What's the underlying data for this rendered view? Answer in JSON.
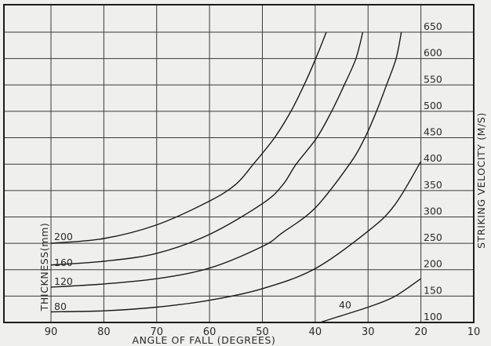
{
  "chart_data": {
    "type": "line",
    "title": "",
    "xlabel": "ANGLE OF FALL (DEGREES)",
    "ylabel": "STRIKING VELOCITY (M/S)",
    "series_label": "THICKNESS(mm)",
    "xlim": [
      90,
      10
    ],
    "ylim": [
      100,
      700
    ],
    "x_ticks": [
      "90",
      "80",
      "70",
      "60",
      "50",
      "40",
      "30",
      "20",
      "10"
    ],
    "y_ticks": [
      "100",
      "150",
      "200",
      "250",
      "300",
      "350",
      "400",
      "450",
      "500",
      "550",
      "600",
      "650"
    ],
    "grid": true,
    "series": [
      {
        "name": "200",
        "x": [
          90,
          80,
          70,
          60,
          55,
          51.7,
          47.7,
          44.6,
          42.1,
          39.9,
          37.9
        ],
        "y": [
          250,
          259,
          285,
          330,
          362,
          400,
          450,
          500,
          550,
          600,
          650
        ]
      },
      {
        "name": "160",
        "x": [
          90,
          80,
          70,
          60,
          50,
          46.2,
          43.6,
          39.7,
          36.9,
          34.5,
          32.3,
          31
        ],
        "y": [
          209,
          216,
          231,
          267,
          325,
          360,
          400,
          450,
          500,
          550,
          600,
          650
        ]
      },
      {
        "name": "120",
        "x": [
          90,
          80,
          70,
          60,
          50,
          46.2,
          40,
          33.5,
          30.6,
          28.4,
          26.5,
          24.7,
          23.7
        ],
        "y": [
          167,
          173,
          183,
          203,
          244,
          270,
          317,
          400,
          450,
          500,
          550,
          600,
          650
        ]
      },
      {
        "name": "80",
        "x": [
          90,
          80,
          70,
          60,
          50,
          40,
          30,
          25,
          20
        ],
        "y": [
          120,
          122,
          129,
          142,
          164,
          202,
          273,
          322,
          405
        ]
      },
      {
        "name": "40",
        "x": [
          39.1,
          35,
          30,
          25,
          20
        ],
        "y": [
          100,
          113,
          129,
          149,
          183
        ]
      }
    ]
  }
}
